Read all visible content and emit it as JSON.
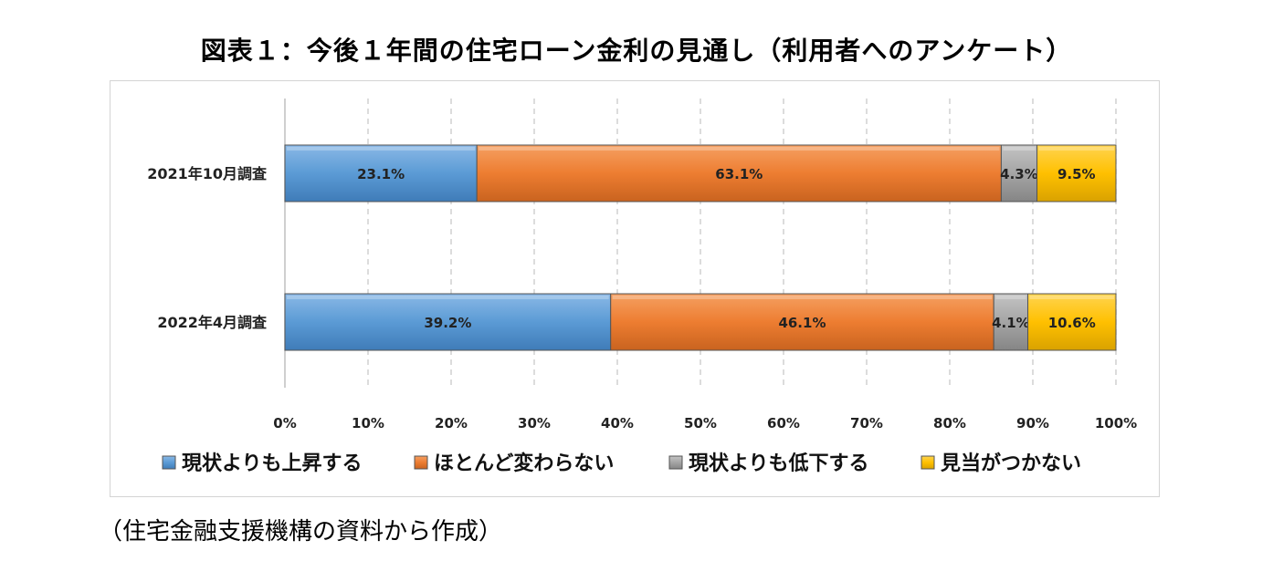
{
  "title": "図表１：今後１年間の住宅ローン金利の見通し（利用者へのアンケート）",
  "source_note": "（住宅金融支援機構の資料から作成）",
  "chart_data": {
    "type": "bar",
    "orientation": "horizontal",
    "stacked": "percent",
    "categories": [
      "2021年10月調査",
      "2022年4月調査"
    ],
    "series": [
      {
        "name": "現状よりも上昇する",
        "values": [
          23.1,
          39.2
        ],
        "labels": [
          "23.1%",
          "39.2%"
        ],
        "color": "#5b9bd5"
      },
      {
        "name": "ほとんど変わらない",
        "values": [
          63.1,
          46.1
        ],
        "labels": [
          "63.1%",
          "46.1%"
        ],
        "color": "#ed7d31"
      },
      {
        "name": "現状よりも低下する",
        "values": [
          4.3,
          4.1
        ],
        "labels": [
          "4.3%",
          "4.1%"
        ],
        "color": "#a5a5a5"
      },
      {
        "name": "見当がつかない",
        "values": [
          9.5,
          10.6
        ],
        "labels": [
          "9.5%",
          "10.6%"
        ],
        "color": "#ffc000"
      }
    ],
    "xlim": [
      0,
      100
    ],
    "xticks": [
      "0%",
      "10%",
      "20%",
      "30%",
      "40%",
      "50%",
      "60%",
      "70%",
      "80%",
      "90%",
      "100%"
    ],
    "grid": "vertical dashed",
    "legend_position": "bottom"
  }
}
